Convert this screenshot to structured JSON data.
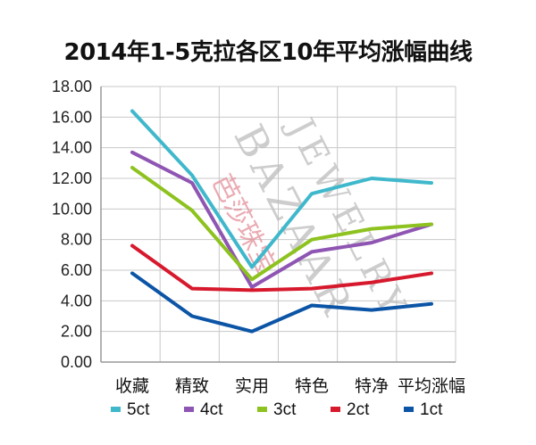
{
  "chart_data": {
    "type": "line",
    "title": "2014年1-5克拉各区10年平均涨幅曲线",
    "categories": [
      "收藏",
      "精致",
      "实用",
      "特色",
      "特净",
      "平均涨幅"
    ],
    "ylim": [
      0,
      18
    ],
    "yticks": [
      "0.00",
      "2.00",
      "4.00",
      "6.00",
      "8.00",
      "10.00",
      "12.00",
      "14.00",
      "16.00",
      "18.00"
    ],
    "grid": true,
    "legend_position": "bottom",
    "series": [
      {
        "name": "5ct",
        "color": "#3fb8cc",
        "values": [
          16.4,
          12.2,
          6.2,
          11.0,
          12.0,
          11.7
        ]
      },
      {
        "name": "4ct",
        "color": "#8f55b3",
        "values": [
          13.7,
          11.7,
          4.9,
          7.2,
          7.8,
          9.0
        ]
      },
      {
        "name": "3ct",
        "color": "#8dc21f",
        "values": [
          12.7,
          9.9,
          5.4,
          8.0,
          8.7,
          9.0
        ]
      },
      {
        "name": "2ct",
        "color": "#d7192d",
        "values": [
          7.6,
          4.8,
          4.7,
          4.8,
          5.2,
          5.8
        ]
      },
      {
        "name": "1ct",
        "color": "#0c55a6",
        "values": [
          5.8,
          3.0,
          2.0,
          3.7,
          3.4,
          3.8
        ]
      }
    ]
  },
  "watermark": {
    "text": "BAZAAR JEWELRY",
    "cn_text": "芭莎珠宝",
    "cn_color": "#e38f9a"
  }
}
